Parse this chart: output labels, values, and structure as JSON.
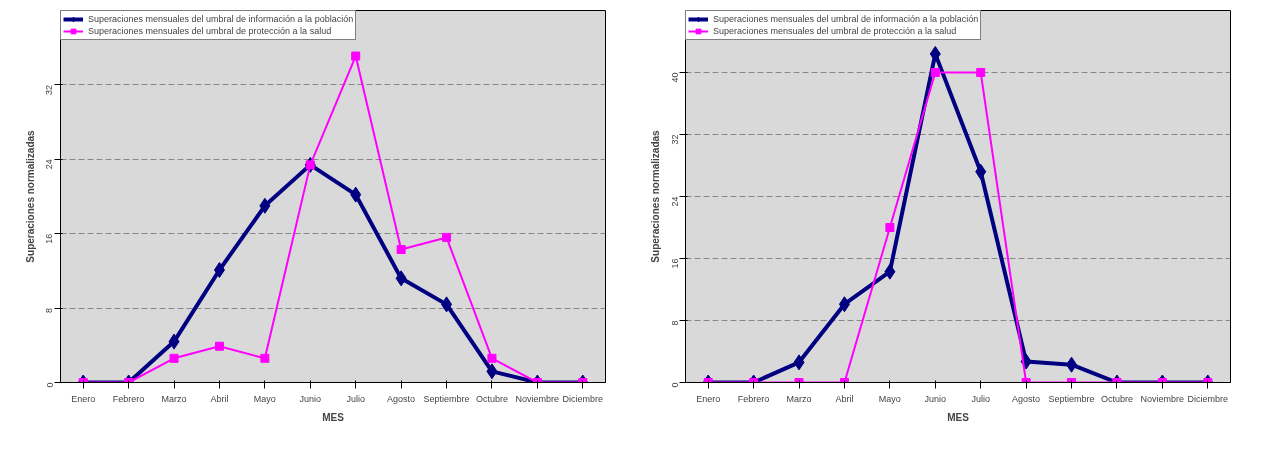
{
  "chart_data": [
    {
      "type": "line",
      "xlabel": "MES",
      "ylabel": "Superaciones normalizadas",
      "categories": [
        "Enero",
        "Febrero",
        "Marzo",
        "Abril",
        "Mayo",
        "Junio",
        "Julio",
        "Agosto",
        "Septiembre",
        "Octubre",
        "Noviembre",
        "Diciembre"
      ],
      "series": [
        {
          "name": "Superaciones mensuales del umbral de información a la población",
          "color": "#000080",
          "marker": "diamond",
          "values": [
            0,
            0,
            4.4,
            12.1,
            19.0,
            23.4,
            20.2,
            11.2,
            8.4,
            1.2,
            0,
            0
          ]
        },
        {
          "name": "Superaciones mensuales del umbral de protección a la salud",
          "color": "#ff00ff",
          "marker": "square",
          "values": [
            0,
            0,
            2.6,
            3.9,
            2.6,
            23.4,
            35.1,
            14.3,
            15.6,
            2.6,
            0,
            0
          ]
        }
      ],
      "ylim": [
        0,
        40
      ],
      "yticks": [
        0,
        8,
        16,
        24,
        32
      ],
      "grid": "y",
      "legend": "top left",
      "line_style": "solid"
    },
    {
      "type": "line",
      "xlabel": "MES",
      "ylabel": "Superaciones normalizadas",
      "categories": [
        "Enero",
        "Febrero",
        "Marzo",
        "Abril",
        "Mayo",
        "Junio",
        "Julio",
        "Agosto",
        "Septiembre",
        "Octubre",
        "Noviembre",
        "Diciembre"
      ],
      "series": [
        {
          "name": "Superaciones mensuales del umbral de información a la población",
          "color": "#000080",
          "marker": "diamond",
          "values": [
            0,
            0,
            2.6,
            10.1,
            14.3,
            42.4,
            27.2,
            2.7,
            2.3,
            0,
            0,
            0
          ]
        },
        {
          "name": "Superaciones mensuales del umbral de protección a la salud",
          "color": "#ff00ff",
          "marker": "square",
          "values": [
            0,
            0,
            0,
            0,
            20.0,
            40,
            40,
            0,
            0,
            0,
            0,
            0
          ]
        }
      ],
      "ylim": [
        0,
        48
      ],
      "yticks": [
        0,
        8,
        16,
        24,
        32,
        40
      ],
      "grid": "y",
      "legend": "top left",
      "line_style": "solid"
    }
  ]
}
